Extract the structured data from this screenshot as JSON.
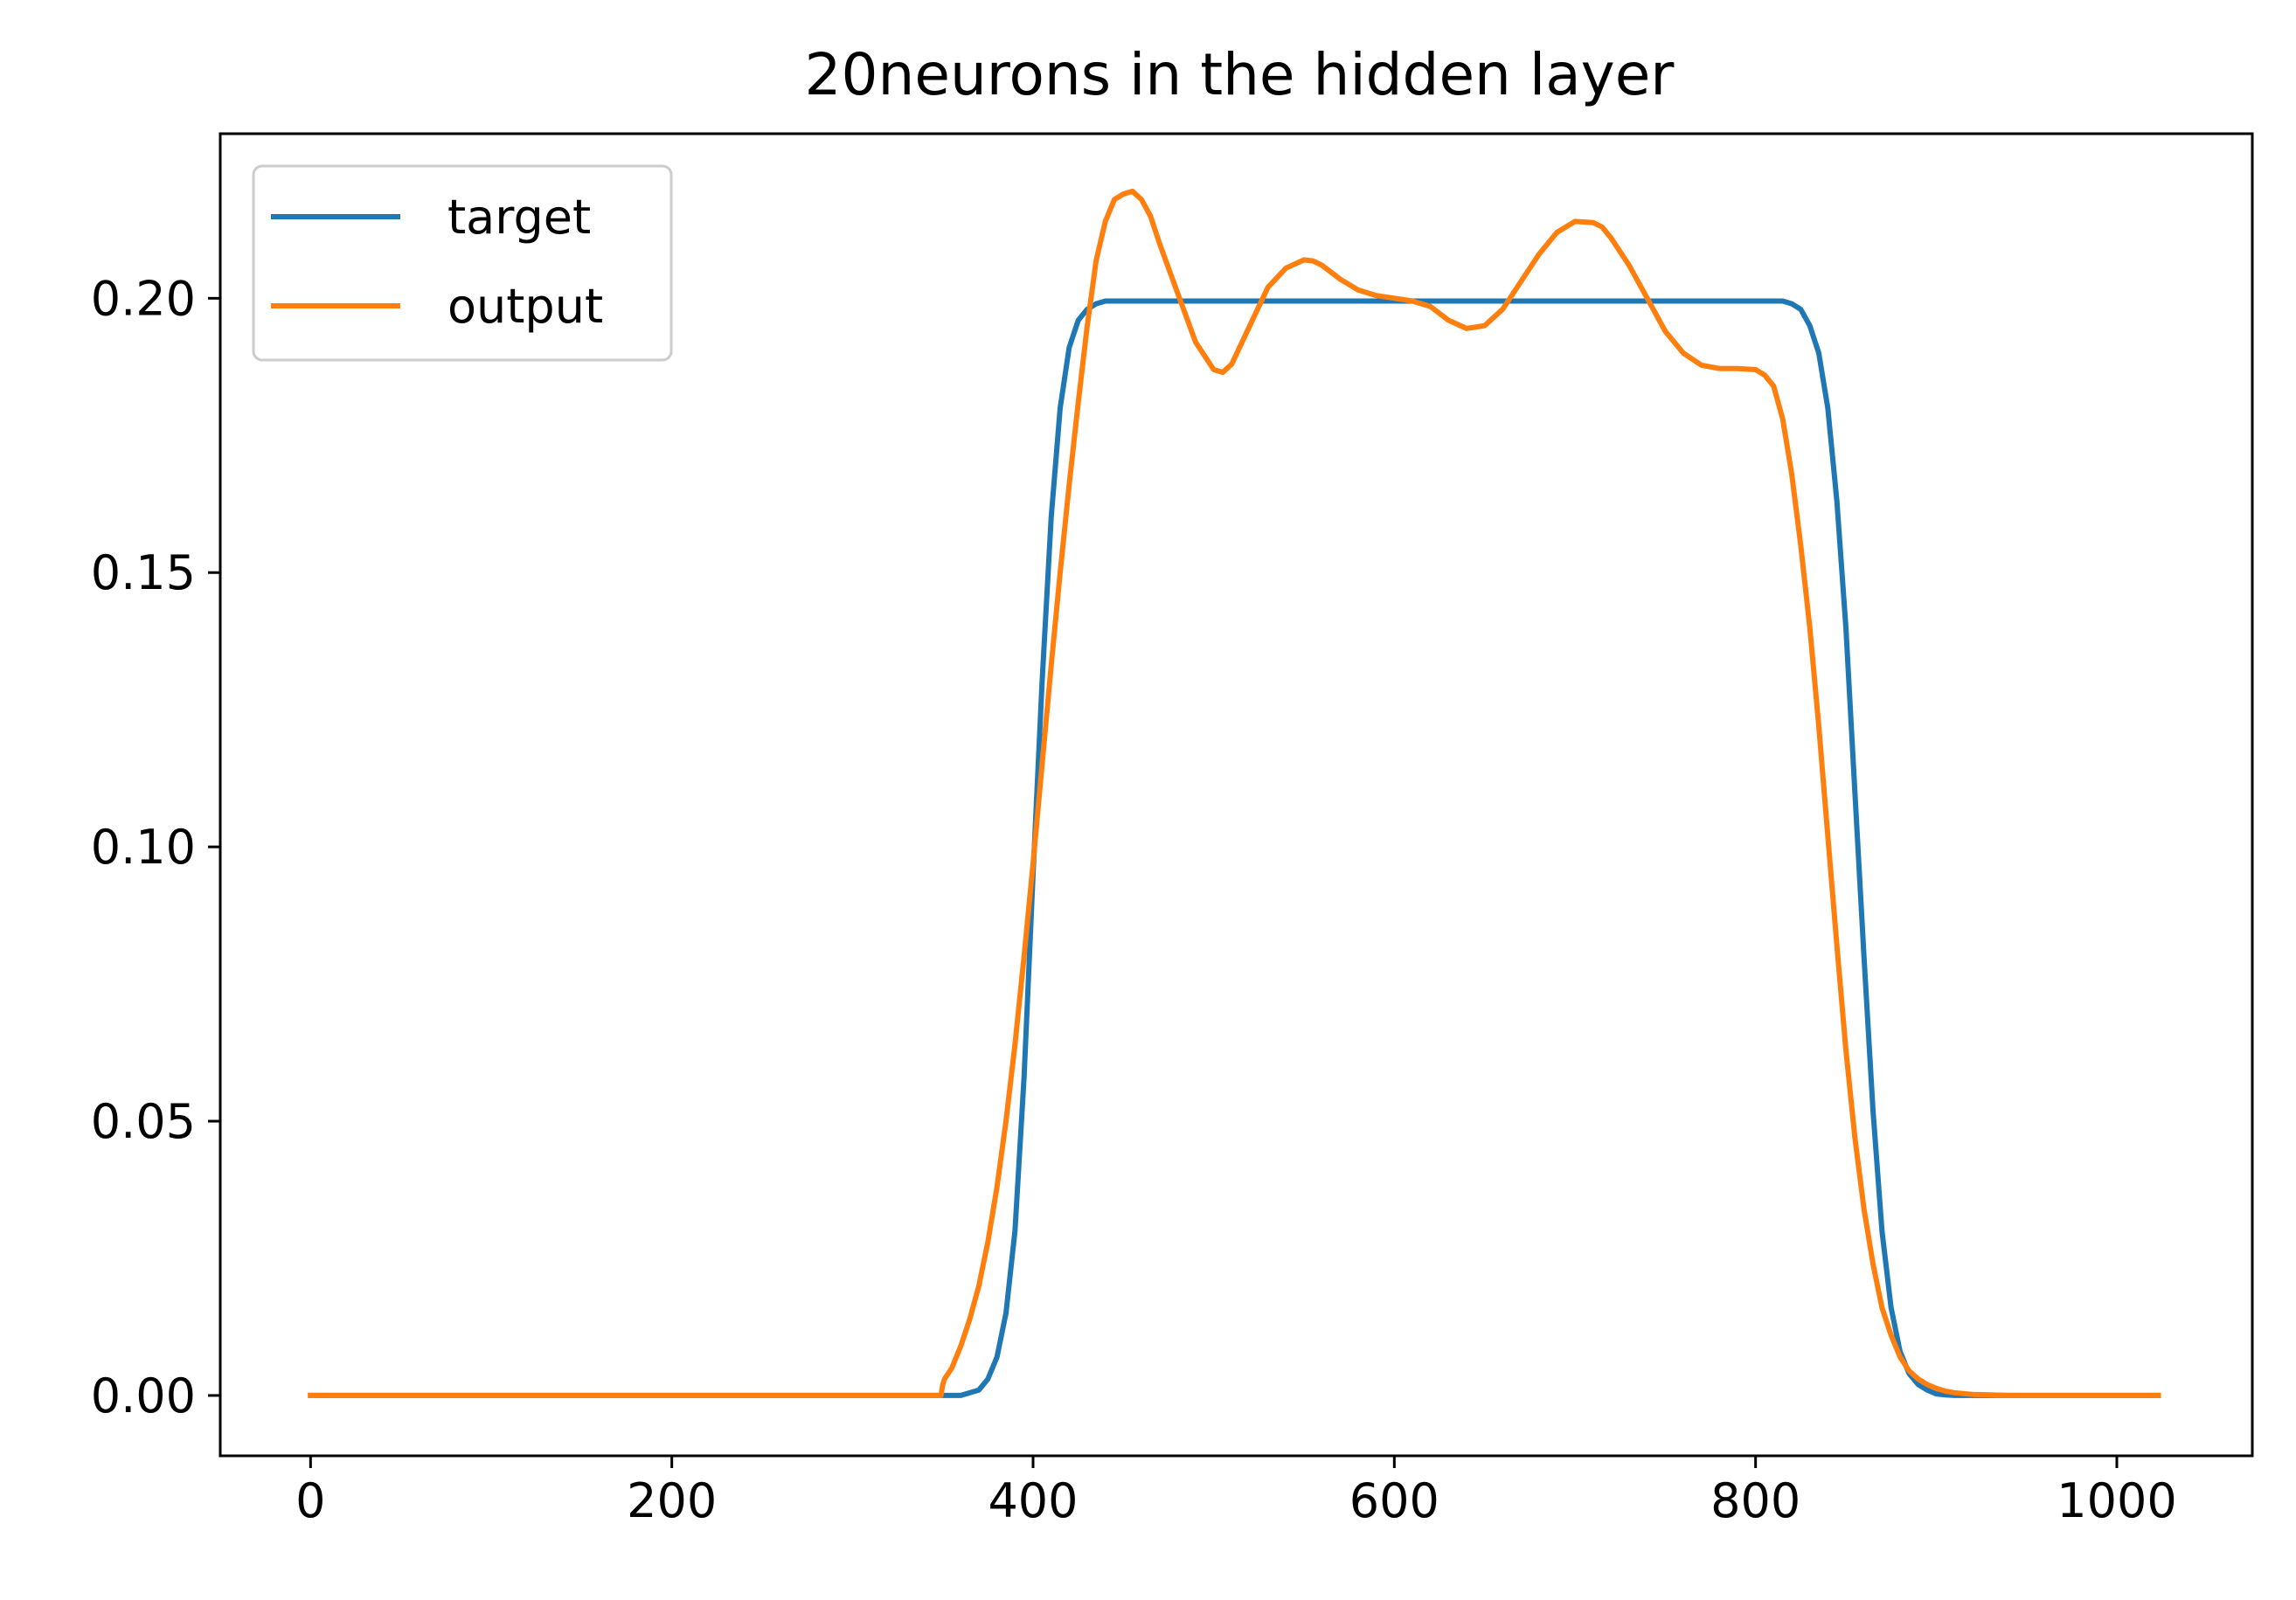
{
  "chart_data": {
    "type": "line",
    "title": "20neurons in the hidden layer",
    "xlabel": "",
    "ylabel": "",
    "xlim": [
      -50,
      1075
    ],
    "ylim": [
      -0.011,
      0.23
    ],
    "xticks": [
      0,
      200,
      400,
      600,
      800,
      1000
    ],
    "yticks": [
      0.0,
      0.05,
      0.1,
      0.15,
      0.2
    ],
    "xtick_labels": [
      "0",
      "200",
      "400",
      "600",
      "800",
      "1000"
    ],
    "ytick_labels": [
      "0.00",
      "0.05",
      "0.10",
      "0.15",
      "0.20"
    ],
    "grid": false,
    "legend_position": "upper-left",
    "series": [
      {
        "name": "target",
        "color": "#1f77b4",
        "x": [
          0,
          100,
          200,
          300,
          340,
          360,
          370,
          375,
          380,
          385,
          390,
          395,
          400,
          405,
          410,
          415,
          420,
          425,
          430,
          435,
          440,
          450,
          500,
          600,
          700,
          800,
          815,
          820,
          825,
          830,
          835,
          840,
          845,
          850,
          855,
          860,
          865,
          870,
          875,
          880,
          885,
          890,
          895,
          900,
          905,
          910,
          920,
          1000,
          1023
        ],
        "y": [
          0.0,
          0.0,
          0.0,
          0.0,
          0.0,
          0.0,
          0.001,
          0.003,
          0.007,
          0.015,
          0.03,
          0.058,
          0.095,
          0.13,
          0.16,
          0.18,
          0.191,
          0.196,
          0.198,
          0.199,
          0.1995,
          0.1995,
          0.1995,
          0.1995,
          0.1995,
          0.1995,
          0.1995,
          0.199,
          0.198,
          0.195,
          0.19,
          0.18,
          0.163,
          0.14,
          0.11,
          0.08,
          0.052,
          0.03,
          0.016,
          0.008,
          0.004,
          0.002,
          0.001,
          0.0003,
          0.0001,
          0.0,
          0.0,
          0.0,
          0.0
        ]
      },
      {
        "name": "output",
        "color": "#ff7f0e",
        "x": [
          0,
          100,
          200,
          300,
          349,
          350,
          351,
          355,
          360,
          365,
          370,
          375,
          380,
          385,
          390,
          395,
          400,
          405,
          410,
          415,
          420,
          425,
          430,
          435,
          440,
          445,
          450,
          455,
          460,
          465,
          470,
          480,
          490,
          500,
          505,
          510,
          520,
          530,
          540,
          550,
          555,
          560,
          570,
          580,
          590,
          600,
          610,
          620,
          630,
          640,
          650,
          660,
          670,
          680,
          690,
          700,
          710,
          715,
          720,
          730,
          740,
          750,
          760,
          770,
          780,
          790,
          800,
          805,
          810,
          815,
          820,
          825,
          830,
          835,
          840,
          845,
          850,
          855,
          860,
          865,
          870,
          875,
          880,
          885,
          890,
          895,
          900,
          905,
          910,
          920,
          930,
          940,
          960,
          1000,
          1023
        ],
        "y": [
          0.0,
          0.0,
          0.0,
          0.0,
          0.0,
          0.002,
          0.003,
          0.005,
          0.009,
          0.014,
          0.02,
          0.028,
          0.038,
          0.05,
          0.064,
          0.08,
          0.097,
          0.115,
          0.133,
          0.15,
          0.166,
          0.181,
          0.195,
          0.207,
          0.214,
          0.218,
          0.219,
          0.2195,
          0.218,
          0.215,
          0.21,
          0.201,
          0.192,
          0.187,
          0.1865,
          0.188,
          0.195,
          0.202,
          0.2055,
          0.207,
          0.2068,
          0.206,
          0.2035,
          0.2015,
          0.2005,
          0.2,
          0.1995,
          0.1985,
          0.196,
          0.1945,
          0.195,
          0.198,
          0.203,
          0.208,
          0.212,
          0.214,
          0.2138,
          0.213,
          0.211,
          0.206,
          0.2,
          0.194,
          0.19,
          0.1878,
          0.1872,
          0.1872,
          0.187,
          0.186,
          0.184,
          0.178,
          0.168,
          0.155,
          0.14,
          0.122,
          0.102,
          0.082,
          0.063,
          0.047,
          0.034,
          0.024,
          0.016,
          0.011,
          0.007,
          0.0045,
          0.003,
          0.002,
          0.0013,
          0.0008,
          0.0005,
          0.0002,
          0.0001,
          0.0,
          0.0,
          0.0,
          0.0
        ]
      }
    ]
  }
}
